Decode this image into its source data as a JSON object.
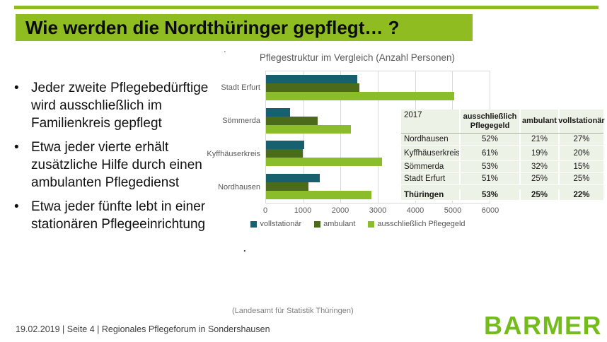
{
  "slide": {
    "title": "Wie werden die Nordthüringer gepflegt… ?",
    "bullets": [
      "Jeder zweite Pflegebedürftige wird ausschließlich im Familienkreis gepflegt",
      "Etwa jeder vierte erhält zusätzliche Hilfe durch einen ambulanten Pflegedienst",
      "Etwa jeder fünfte lebt in einer stationären Pflegeeinrichtung"
    ],
    "stray_dot": ".",
    "footnote": "(Landesamt für Statistik Thüringen)",
    "footer": "19.02.2019 | Seite 4 | Regionales Pflegeforum in Sondershausen",
    "logo": "BARMER"
  },
  "colors": {
    "accent_green": "#8ebc21",
    "bar_teal": "#16606f",
    "bar_dark_green": "#4c6b1a",
    "bar_light_green": "#8bbd2a",
    "logo_green": "#74bc1c",
    "chart_text_gray": "#595959",
    "table_bg": "#edf2e6",
    "gridline_gray": "#d9d9d9"
  },
  "chart_data": {
    "type": "bar",
    "orientation": "horizontal",
    "title": "Pflegestruktur im Vergleich (Anzahl Personen)",
    "xlabel": "",
    "ylabel": "",
    "categories": [
      "Stadt Erfurt",
      "Sömmerda",
      "Kyffhäuserkreis",
      "Nordhausen"
    ],
    "series": [
      {
        "name": "vollstationär",
        "color": "#16606f",
        "values": [
          2450,
          650,
          1020,
          1450
        ]
      },
      {
        "name": "ambulant",
        "color": "#4c6b1a",
        "values": [
          2500,
          1390,
          990,
          1130
        ]
      },
      {
        "name": "ausschließlich Pflegegeld",
        "color": "#8bbd2a",
        "values": [
          5050,
          2280,
          3110,
          2820
        ]
      }
    ],
    "xlim": [
      0,
      6000
    ],
    "xticks": [
      0,
      1000,
      2000,
      3000,
      4000,
      5000,
      6000
    ],
    "grid": true,
    "legend_position": "bottom"
  },
  "table": {
    "year_label": "2017",
    "columns": [
      "ausschließlich\nPflegegeld",
      "ambulant",
      "vollstationär"
    ],
    "rows": [
      {
        "label": "Nordhausen",
        "values": [
          "52%",
          "21%",
          "27%"
        ]
      },
      {
        "label": "Kyffhäuserkreis",
        "values": [
          "61%",
          "19%",
          "20%"
        ],
        "tall": true
      },
      {
        "label": "Sömmerda",
        "values": [
          "53%",
          "32%",
          "15%"
        ]
      },
      {
        "label": "Stadt Erfurt",
        "values": [
          "51%",
          "25%",
          "25%"
        ]
      },
      {
        "label": "",
        "values": [
          "",
          "",
          ""
        ],
        "spacer": true
      },
      {
        "label": "Thüringen",
        "values": [
          "53%",
          "25%",
          "22%"
        ],
        "bold": true
      }
    ]
  }
}
